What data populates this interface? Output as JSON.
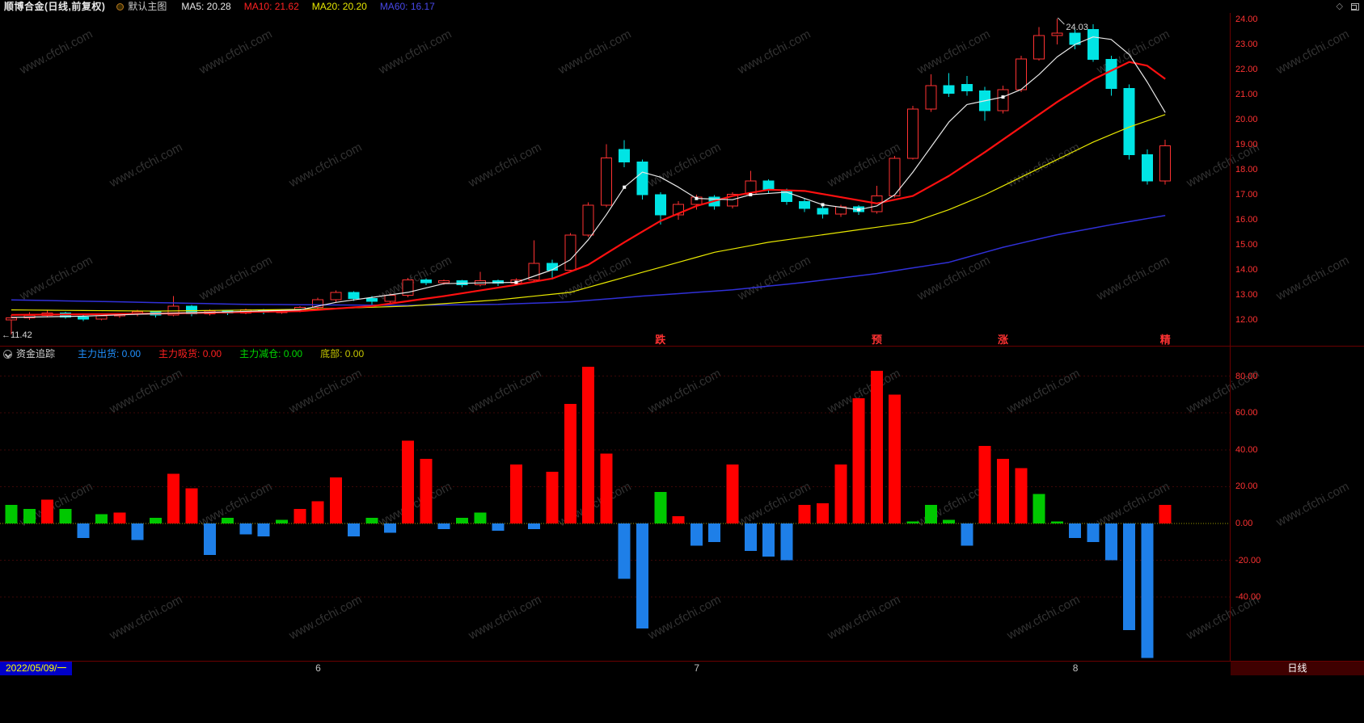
{
  "header": {
    "title": "顺博合金(日线,前复权)",
    "overlay_label": "默认主图",
    "corner_diamond": "◇",
    "ma_items": [
      {
        "name": "ma5",
        "label": "MA5: 20.28",
        "color": "#e8e8e8"
      },
      {
        "name": "ma10",
        "label": "MA10: 21.62",
        "color": "#ff2222"
      },
      {
        "name": "ma20",
        "label": "MA20: 20.20",
        "color": "#e8e800"
      },
      {
        "name": "ma60",
        "label": "MA60: 16.17",
        "color": "#4848e8"
      }
    ]
  },
  "indicator_panel": {
    "name": "资金追踪",
    "legend": [
      {
        "label": "主力出货: 0.00",
        "color": "#2090ff"
      },
      {
        "label": "主力吸货: 0.00",
        "color": "#ff2020"
      },
      {
        "label": "主力减仓: 0.00",
        "color": "#00d800"
      },
      {
        "label": "底部: 0.00",
        "color": "#c8c800"
      }
    ]
  },
  "bottom_bar": {
    "date": "2022/05/09/一",
    "months": [
      {
        "label": "6",
        "index": 17
      },
      {
        "label": "7",
        "index": 38
      },
      {
        "label": "8",
        "index": 59
      }
    ],
    "period": "日线"
  },
  "watermark_text": "www.cfchi.com",
  "colors": {
    "up": "#ff3232",
    "down": "#00e4e4",
    "bar_red": "#ff0000",
    "bar_blue": "#1e7fe8",
    "bar_green": "#00c800",
    "ma5": "#e8e8e8",
    "ma10": "#ff1010",
    "ma20": "#e8e800",
    "ma60": "#3030d8",
    "axis_text": "#ff3232",
    "grid": "#3c0707",
    "zero_line": "#9a9a00",
    "signal": "#ff3232",
    "annotation": "#d8d8d8"
  },
  "chart_data": {
    "type": "candlestick+bar",
    "main": {
      "title": "顺博合金 日线 前复权",
      "ylim": [
        10.97,
        24.26
      ],
      "yticks": [
        24,
        23,
        22,
        21,
        20,
        19,
        18,
        17,
        16,
        15,
        14,
        13,
        12
      ],
      "candles": [
        [
          12.0,
          12.2,
          11.42,
          12.08
        ],
        [
          12.08,
          12.3,
          12.0,
          12.18
        ],
        [
          12.18,
          12.38,
          12.1,
          12.28
        ],
        [
          12.28,
          12.32,
          12.05,
          12.12
        ],
        [
          12.12,
          12.25,
          11.95,
          12.04
        ],
        [
          12.04,
          12.22,
          11.98,
          12.16
        ],
        [
          12.16,
          12.28,
          12.08,
          12.22
        ],
        [
          12.22,
          12.4,
          12.14,
          12.32
        ],
        [
          12.32,
          12.36,
          12.1,
          12.2
        ],
        [
          12.2,
          12.95,
          12.15,
          12.55
        ],
        [
          12.55,
          12.6,
          12.15,
          12.25
        ],
        [
          12.25,
          12.42,
          12.18,
          12.36
        ],
        [
          12.36,
          12.4,
          12.2,
          12.28
        ],
        [
          12.28,
          12.45,
          12.22,
          12.4
        ],
        [
          12.4,
          12.44,
          12.22,
          12.3
        ],
        [
          12.3,
          12.42,
          12.24,
          12.36
        ],
        [
          12.36,
          12.55,
          12.3,
          12.5
        ],
        [
          12.5,
          12.88,
          12.42,
          12.8
        ],
        [
          12.8,
          13.18,
          12.7,
          13.1
        ],
        [
          13.1,
          13.14,
          12.76,
          12.85
        ],
        [
          12.85,
          12.95,
          12.62,
          12.74
        ],
        [
          12.74,
          13.05,
          12.68,
          12.98
        ],
        [
          12.98,
          13.68,
          12.9,
          13.6
        ],
        [
          13.6,
          13.66,
          13.38,
          13.48
        ],
        [
          13.48,
          13.62,
          13.4,
          13.56
        ],
        [
          13.56,
          13.6,
          13.3,
          13.4
        ],
        [
          13.4,
          13.92,
          13.34,
          13.56
        ],
        [
          13.56,
          13.62,
          13.36,
          13.46
        ],
        [
          13.46,
          13.66,
          13.4,
          13.6
        ],
        [
          13.6,
          15.18,
          13.52,
          14.26
        ],
        [
          14.26,
          14.4,
          13.62,
          13.98
        ],
        [
          13.98,
          15.46,
          13.9,
          15.38
        ],
        [
          15.38,
          16.7,
          15.3,
          16.58
        ],
        [
          16.58,
          19.02,
          16.5,
          18.46
        ],
        [
          18.8,
          19.18,
          18.1,
          18.3
        ],
        [
          18.3,
          18.4,
          16.8,
          17.0
        ],
        [
          17.0,
          17.1,
          15.8,
          16.2
        ],
        [
          16.2,
          16.75,
          16.0,
          16.62
        ],
        [
          16.62,
          17.0,
          16.4,
          16.9
        ],
        [
          16.9,
          16.98,
          16.4,
          16.55
        ],
        [
          16.55,
          17.1,
          16.45,
          17.02
        ],
        [
          17.02,
          17.95,
          16.95,
          17.55
        ],
        [
          17.55,
          17.62,
          17.05,
          17.18
        ],
        [
          17.18,
          17.25,
          16.6,
          16.72
        ],
        [
          16.72,
          16.85,
          16.3,
          16.45
        ],
        [
          16.45,
          16.6,
          16.05,
          16.22
        ],
        [
          16.22,
          16.6,
          16.12,
          16.52
        ],
        [
          16.52,
          16.58,
          16.2,
          16.32
        ],
        [
          16.32,
          17.35,
          16.25,
          16.95
        ],
        [
          16.95,
          18.55,
          16.88,
          18.45
        ],
        [
          18.45,
          20.55,
          18.4,
          20.42
        ],
        [
          20.42,
          21.8,
          20.3,
          21.35
        ],
        [
          21.35,
          21.85,
          20.9,
          21.05
        ],
        [
          21.4,
          21.75,
          20.95,
          21.15
        ],
        [
          21.15,
          21.3,
          19.95,
          20.35
        ],
        [
          20.35,
          21.35,
          20.25,
          21.2
        ],
        [
          21.2,
          22.55,
          21.1,
          22.42
        ],
        [
          22.42,
          23.7,
          22.35,
          23.35
        ],
        [
          23.35,
          24.03,
          23.0,
          23.45
        ],
        [
          23.45,
          23.6,
          22.8,
          23.0
        ],
        [
          23.6,
          23.8,
          22.3,
          22.4
        ],
        [
          22.4,
          22.55,
          20.95,
          21.25
        ],
        [
          21.25,
          21.4,
          18.4,
          18.6
        ],
        [
          18.6,
          18.8,
          17.4,
          17.55
        ],
        [
          17.55,
          19.2,
          17.4,
          18.95
        ]
      ],
      "ma_lines": {
        "ma5": [
          [
            0,
            12.1
          ],
          [
            4,
            12.15
          ],
          [
            8,
            12.25
          ],
          [
            12,
            12.32
          ],
          [
            16,
            12.4
          ],
          [
            18,
            12.7
          ],
          [
            20,
            12.9
          ],
          [
            22,
            13.1
          ],
          [
            24,
            13.45
          ],
          [
            28,
            13.5
          ],
          [
            29,
            13.75
          ],
          [
            30,
            14.0
          ],
          [
            31,
            14.4
          ],
          [
            32,
            15.2
          ],
          [
            33,
            16.2
          ],
          [
            34,
            17.3
          ],
          [
            35,
            17.9
          ],
          [
            36,
            17.7
          ],
          [
            37,
            17.3
          ],
          [
            38,
            16.85
          ],
          [
            40,
            16.8
          ],
          [
            41,
            17.0
          ],
          [
            43,
            17.1
          ],
          [
            45,
            16.6
          ],
          [
            47,
            16.4
          ],
          [
            48,
            16.55
          ],
          [
            49,
            17.0
          ],
          [
            50,
            17.9
          ],
          [
            51,
            18.9
          ],
          [
            52,
            19.9
          ],
          [
            53,
            20.6
          ],
          [
            55,
            20.9
          ],
          [
            56,
            21.2
          ],
          [
            57,
            21.8
          ],
          [
            58,
            22.5
          ],
          [
            59,
            23.0
          ],
          [
            60,
            23.3
          ],
          [
            61,
            23.2
          ],
          [
            62,
            22.6
          ],
          [
            63,
            21.5
          ],
          [
            64,
            20.28
          ]
        ],
        "ma10": [
          [
            0,
            12.2
          ],
          [
            8,
            12.25
          ],
          [
            16,
            12.35
          ],
          [
            20,
            12.55
          ],
          [
            24,
            12.95
          ],
          [
            28,
            13.4
          ],
          [
            30,
            13.65
          ],
          [
            32,
            14.2
          ],
          [
            34,
            15.1
          ],
          [
            36,
            15.95
          ],
          [
            38,
            16.55
          ],
          [
            40,
            16.95
          ],
          [
            42,
            17.2
          ],
          [
            44,
            17.15
          ],
          [
            46,
            16.9
          ],
          [
            48,
            16.65
          ],
          [
            50,
            16.95
          ],
          [
            52,
            17.75
          ],
          [
            54,
            18.7
          ],
          [
            56,
            19.7
          ],
          [
            58,
            20.7
          ],
          [
            60,
            21.6
          ],
          [
            62,
            22.3
          ],
          [
            63,
            22.15
          ],
          [
            64,
            21.62
          ]
        ],
        "ma20": [
          [
            0,
            12.4
          ],
          [
            8,
            12.35
          ],
          [
            16,
            12.42
          ],
          [
            22,
            12.55
          ],
          [
            27,
            12.8
          ],
          [
            31,
            13.1
          ],
          [
            33,
            13.5
          ],
          [
            36,
            14.1
          ],
          [
            39,
            14.7
          ],
          [
            42,
            15.1
          ],
          [
            45,
            15.4
          ],
          [
            48,
            15.7
          ],
          [
            50,
            15.9
          ],
          [
            52,
            16.4
          ],
          [
            54,
            17.0
          ],
          [
            56,
            17.7
          ],
          [
            58,
            18.4
          ],
          [
            60,
            19.1
          ],
          [
            62,
            19.7
          ],
          [
            64,
            20.2
          ]
        ],
        "ma60": [
          [
            0,
            12.8
          ],
          [
            6,
            12.72
          ],
          [
            13,
            12.62
          ],
          [
            22,
            12.58
          ],
          [
            27,
            12.62
          ],
          [
            31,
            12.72
          ],
          [
            35,
            12.95
          ],
          [
            40,
            13.2
          ],
          [
            44,
            13.5
          ],
          [
            48,
            13.85
          ],
          [
            52,
            14.3
          ],
          [
            55,
            14.9
          ],
          [
            58,
            15.4
          ],
          [
            61,
            15.8
          ],
          [
            64,
            16.17
          ]
        ]
      },
      "ma5_markers": [
        28,
        34,
        38,
        41,
        45,
        47,
        55
      ],
      "annotations": {
        "high": {
          "text": "24.03",
          "index": 58,
          "price": 24.03
        },
        "low": {
          "text": "←11.42",
          "index": 0,
          "price": 11.42
        }
      },
      "signals": [
        {
          "text": "跌",
          "index": 36
        },
        {
          "text": "预",
          "index": 48
        },
        {
          "text": "涨",
          "index": 55
        },
        {
          "text": "精",
          "index": 64
        }
      ]
    },
    "sub": {
      "type": "bar",
      "name": "资金追踪",
      "yticks": [
        80,
        60,
        40,
        20,
        0,
        -20,
        -40
      ],
      "bars": [
        [
          10,
          "g"
        ],
        [
          8,
          "g"
        ],
        [
          13,
          "r"
        ],
        [
          8,
          "g"
        ],
        [
          -8,
          "b"
        ],
        [
          5,
          "g"
        ],
        [
          6,
          "r"
        ],
        [
          -9,
          "b"
        ],
        [
          3,
          "g"
        ],
        [
          27,
          "r"
        ],
        [
          19,
          "r"
        ],
        [
          -17,
          "b"
        ],
        [
          3,
          "g"
        ],
        [
          -6,
          "b"
        ],
        [
          -7,
          "b"
        ],
        [
          2,
          "g"
        ],
        [
          8,
          "r"
        ],
        [
          12,
          "r"
        ],
        [
          25,
          "r"
        ],
        [
          -7,
          "b"
        ],
        [
          3,
          "g"
        ],
        [
          -5,
          "b"
        ],
        [
          45,
          "r"
        ],
        [
          35,
          "r"
        ],
        [
          -3,
          "b"
        ],
        [
          3,
          "g"
        ],
        [
          6,
          "g"
        ],
        [
          -4,
          "b"
        ],
        [
          32,
          "r"
        ],
        [
          -3,
          "b"
        ],
        [
          28,
          "r"
        ],
        [
          65,
          "r"
        ],
        [
          85,
          "r"
        ],
        [
          38,
          "r"
        ],
        [
          -30,
          "b"
        ],
        [
          -57,
          "b"
        ],
        [
          17,
          "g"
        ],
        [
          4,
          "r"
        ],
        [
          -12,
          "b"
        ],
        [
          -10,
          "b"
        ],
        [
          32,
          "r"
        ],
        [
          -15,
          "b"
        ],
        [
          -18,
          "b"
        ],
        [
          -20,
          "b"
        ],
        [
          10,
          "r"
        ],
        [
          11,
          "r"
        ],
        [
          32,
          "r"
        ],
        [
          68,
          "r"
        ],
        [
          83,
          "r"
        ],
        [
          70,
          "r"
        ],
        [
          1,
          "g"
        ],
        [
          10,
          "g"
        ],
        [
          2,
          "g"
        ],
        [
          -12,
          "b"
        ],
        [
          42,
          "r"
        ],
        [
          35,
          "r"
        ],
        [
          30,
          "r"
        ],
        [
          16,
          "g"
        ],
        [
          1,
          "g"
        ],
        [
          -8,
          "b"
        ],
        [
          -10,
          "b"
        ],
        [
          -20,
          "b"
        ],
        [
          -58,
          "b"
        ],
        [
          -73,
          "b"
        ],
        [
          10,
          "r"
        ]
      ]
    }
  }
}
